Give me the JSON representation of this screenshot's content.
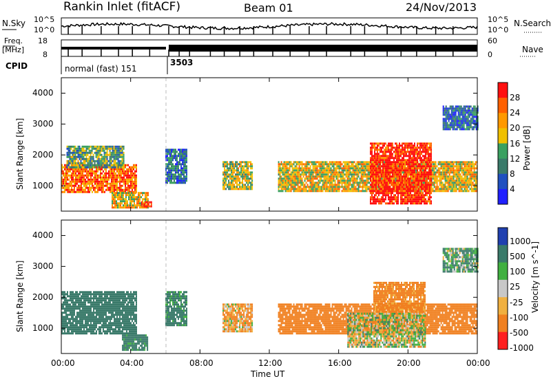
{
  "header": {
    "station": "Rankin Inlet (fitACF)",
    "beam": "Beam 01",
    "date": "24/Nov/2013"
  },
  "noise_panel": {
    "left_label": "N.Sky",
    "left_top_tick": "10^5",
    "left_bottom_tick": "10^0",
    "right_top_tick": "10^5",
    "right_bottom_tick": "10^0",
    "right_label": "N.Search"
  },
  "freq_panel": {
    "label_top": "Freq.",
    "label_unit": "[MHz]",
    "left_top_tick": "18",
    "left_bottom_tick": "8",
    "right_top_tick": "60",
    "right_bottom_tick": "0",
    "right_label": "Nave"
  },
  "cpid_panel": {
    "label": "CPID",
    "mode1": "normal (fast) 151",
    "mode2": "3503"
  },
  "x_axis": {
    "ticks": [
      "00:00",
      "04:00",
      "08:00",
      "12:00",
      "16:00",
      "20:00",
      "00:00"
    ],
    "label": "Time UT"
  },
  "power_panel": {
    "ylabel": "Slant Range [km]",
    "yticks": [
      "1000",
      "2000",
      "3000",
      "4000"
    ],
    "colorbar_label": "Power [dB]",
    "colorbar_ticks": [
      "4",
      "8",
      "12",
      "16",
      "20",
      "24",
      "28"
    ]
  },
  "velocity_panel": {
    "ylabel": "Slant Range [km]",
    "yticks": [
      "1000",
      "2000",
      "3000",
      "4000"
    ],
    "colorbar_label": "Velocity [m s^-1]",
    "colorbar_ticks": [
      "1000",
      "500",
      "100",
      "25",
      "-25",
      "-100",
      "-500",
      "-1000"
    ]
  },
  "chart_data": [
    {
      "type": "heatmap",
      "title": "Power",
      "xlabel": "Time UT",
      "ylabel": "Slant Range [km]",
      "xlim": [
        "00:00",
        "24:00"
      ],
      "ylim": [
        180,
        4500
      ],
      "colorbar": {
        "label": "Power [dB]",
        "range": [
          0,
          30
        ],
        "ticks": [
          4,
          8,
          12,
          16,
          20,
          24,
          28
        ]
      },
      "regions": [
        {
          "t": [
            0.0,
            4.3
          ],
          "r": [
            800,
            1700
          ],
          "level": 24
        },
        {
          "t": [
            0.3,
            3.6
          ],
          "r": [
            1600,
            2300
          ],
          "level": 12
        },
        {
          "t": [
            2.9,
            5.0
          ],
          "r": [
            300,
            800
          ],
          "level": 18
        },
        {
          "t": [
            4.6,
            5.2
          ],
          "r": [
            300,
            500
          ],
          "level": 28
        },
        {
          "t": [
            6.0,
            7.2
          ],
          "r": [
            1100,
            2200
          ],
          "level": 8
        },
        {
          "t": [
            9.3,
            11.0
          ],
          "r": [
            900,
            1800
          ],
          "level": 16
        },
        {
          "t": [
            12.5,
            24.0
          ],
          "r": [
            800,
            1800
          ],
          "level": 18
        },
        {
          "t": [
            17.8,
            21.3
          ],
          "r": [
            400,
            2400
          ],
          "level": 28
        },
        {
          "t": [
            22.0,
            24.0
          ],
          "r": [
            2800,
            3600
          ],
          "level": 8
        }
      ]
    },
    {
      "type": "heatmap",
      "title": "Velocity",
      "xlabel": "Time UT",
      "ylabel": "Slant Range [km]",
      "xlim": [
        "00:00",
        "24:00"
      ],
      "ylim": [
        180,
        4500
      ],
      "colorbar": {
        "label": "Velocity [m s^-1]",
        "range": [
          -1000,
          1000
        ],
        "ticks": [
          1000,
          500,
          100,
          25,
          -25,
          -100,
          -500,
          -1000
        ]
      },
      "regions": [
        {
          "t": [
            0.0,
            4.3
          ],
          "r": [
            800,
            2200
          ],
          "level": 300
        },
        {
          "t": [
            3.5,
            5.0
          ],
          "r": [
            300,
            800
          ],
          "level": 200
        },
        {
          "t": [
            6.0,
            7.2
          ],
          "r": [
            1100,
            2200
          ],
          "level": 200
        },
        {
          "t": [
            9.3,
            11.0
          ],
          "r": [
            900,
            1800
          ],
          "level": -100
        },
        {
          "t": [
            12.5,
            24.0
          ],
          "r": [
            800,
            1800
          ],
          "level": -300
        },
        {
          "t": [
            16.5,
            21.0
          ],
          "r": [
            400,
            1500
          ],
          "level": 0
        },
        {
          "t": [
            18.0,
            21.0
          ],
          "r": [
            1500,
            2500
          ],
          "level": -200
        },
        {
          "t": [
            22.0,
            24.0
          ],
          "r": [
            2800,
            3600
          ],
          "level": 100
        }
      ]
    }
  ]
}
